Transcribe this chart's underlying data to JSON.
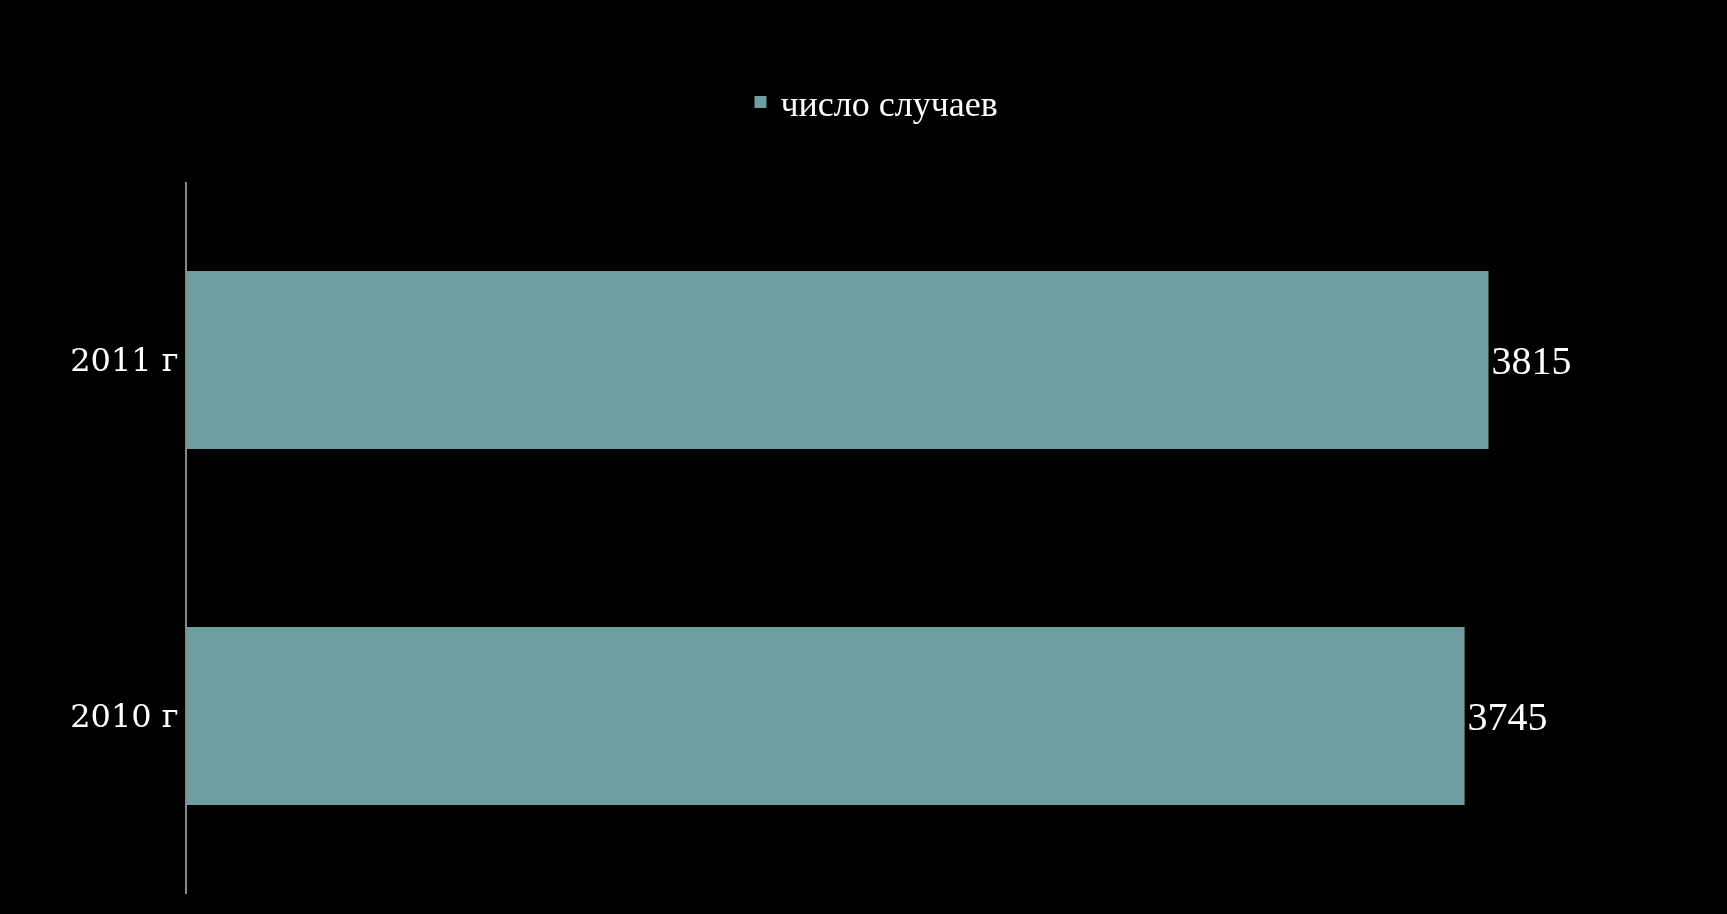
{
  "chart_data": {
    "type": "bar",
    "orientation": "horizontal",
    "categories": [
      "2011 г",
      "2010 г"
    ],
    "series": [
      {
        "name": "число случаев",
        "color": "#6f9ea0",
        "values": [
          3815,
          3745
        ]
      }
    ],
    "tick_labels": "y",
    "data_labels": true,
    "legend": "top"
  }
}
